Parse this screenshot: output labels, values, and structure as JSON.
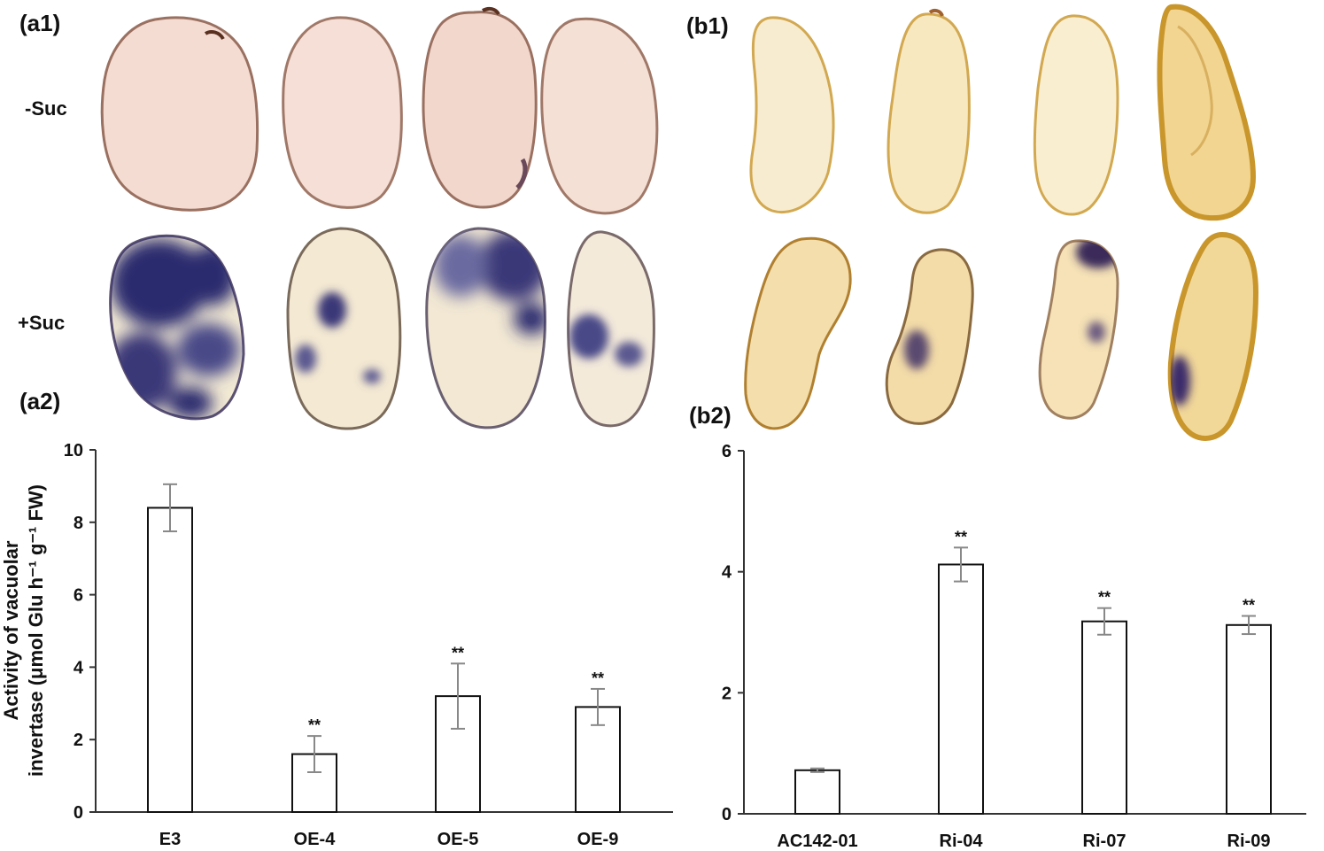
{
  "panels": {
    "a1": "(a1)",
    "a2": "(a2)",
    "b1": "(b1)",
    "b2": "(b2)"
  },
  "rows": {
    "minus_suc": "-Suc",
    "plus_suc": "+Suc"
  },
  "colors": {
    "slice_pink": "#f4dcd2",
    "slice_pink_edge": "#9a7060",
    "slice_cream": "#f7ead0",
    "slice_yellow": "#f6e4ad",
    "slice_yellow_edge": "#c9962c",
    "stain_blue": "#2c2a6e",
    "bar_fill": "#ffffff",
    "bar_stroke": "#111111",
    "error_bar": "#888888"
  },
  "chart_data": [
    {
      "type": "bar",
      "panel": "a2",
      "categories": [
        "E3",
        "OE-4",
        "OE-5",
        "OE-9"
      ],
      "values": [
        8.4,
        1.6,
        3.2,
        2.9
      ],
      "errors": [
        0.65,
        0.5,
        0.9,
        0.5
      ],
      "significance": [
        "",
        "**",
        "**",
        "**"
      ],
      "ylabel_line1": "Activity of vacuolar",
      "ylabel_line2": "invertase (μmol Glu h⁻¹ g⁻¹ FW)",
      "ylim": [
        0,
        10
      ],
      "yticks": [
        0,
        2,
        4,
        6,
        8,
        10
      ],
      "grid": false
    },
    {
      "type": "bar",
      "panel": "b2",
      "categories": [
        "AC142-01",
        "Ri-04",
        "Ri-07",
        "Ri-09"
      ],
      "values": [
        0.72,
        4.12,
        3.18,
        3.12
      ],
      "errors": [
        0.03,
        0.28,
        0.22,
        0.15
      ],
      "significance": [
        "",
        "**",
        "**",
        "**"
      ],
      "ylim": [
        0,
        6
      ],
      "yticks": [
        0,
        2,
        4,
        6
      ],
      "grid": false
    }
  ]
}
